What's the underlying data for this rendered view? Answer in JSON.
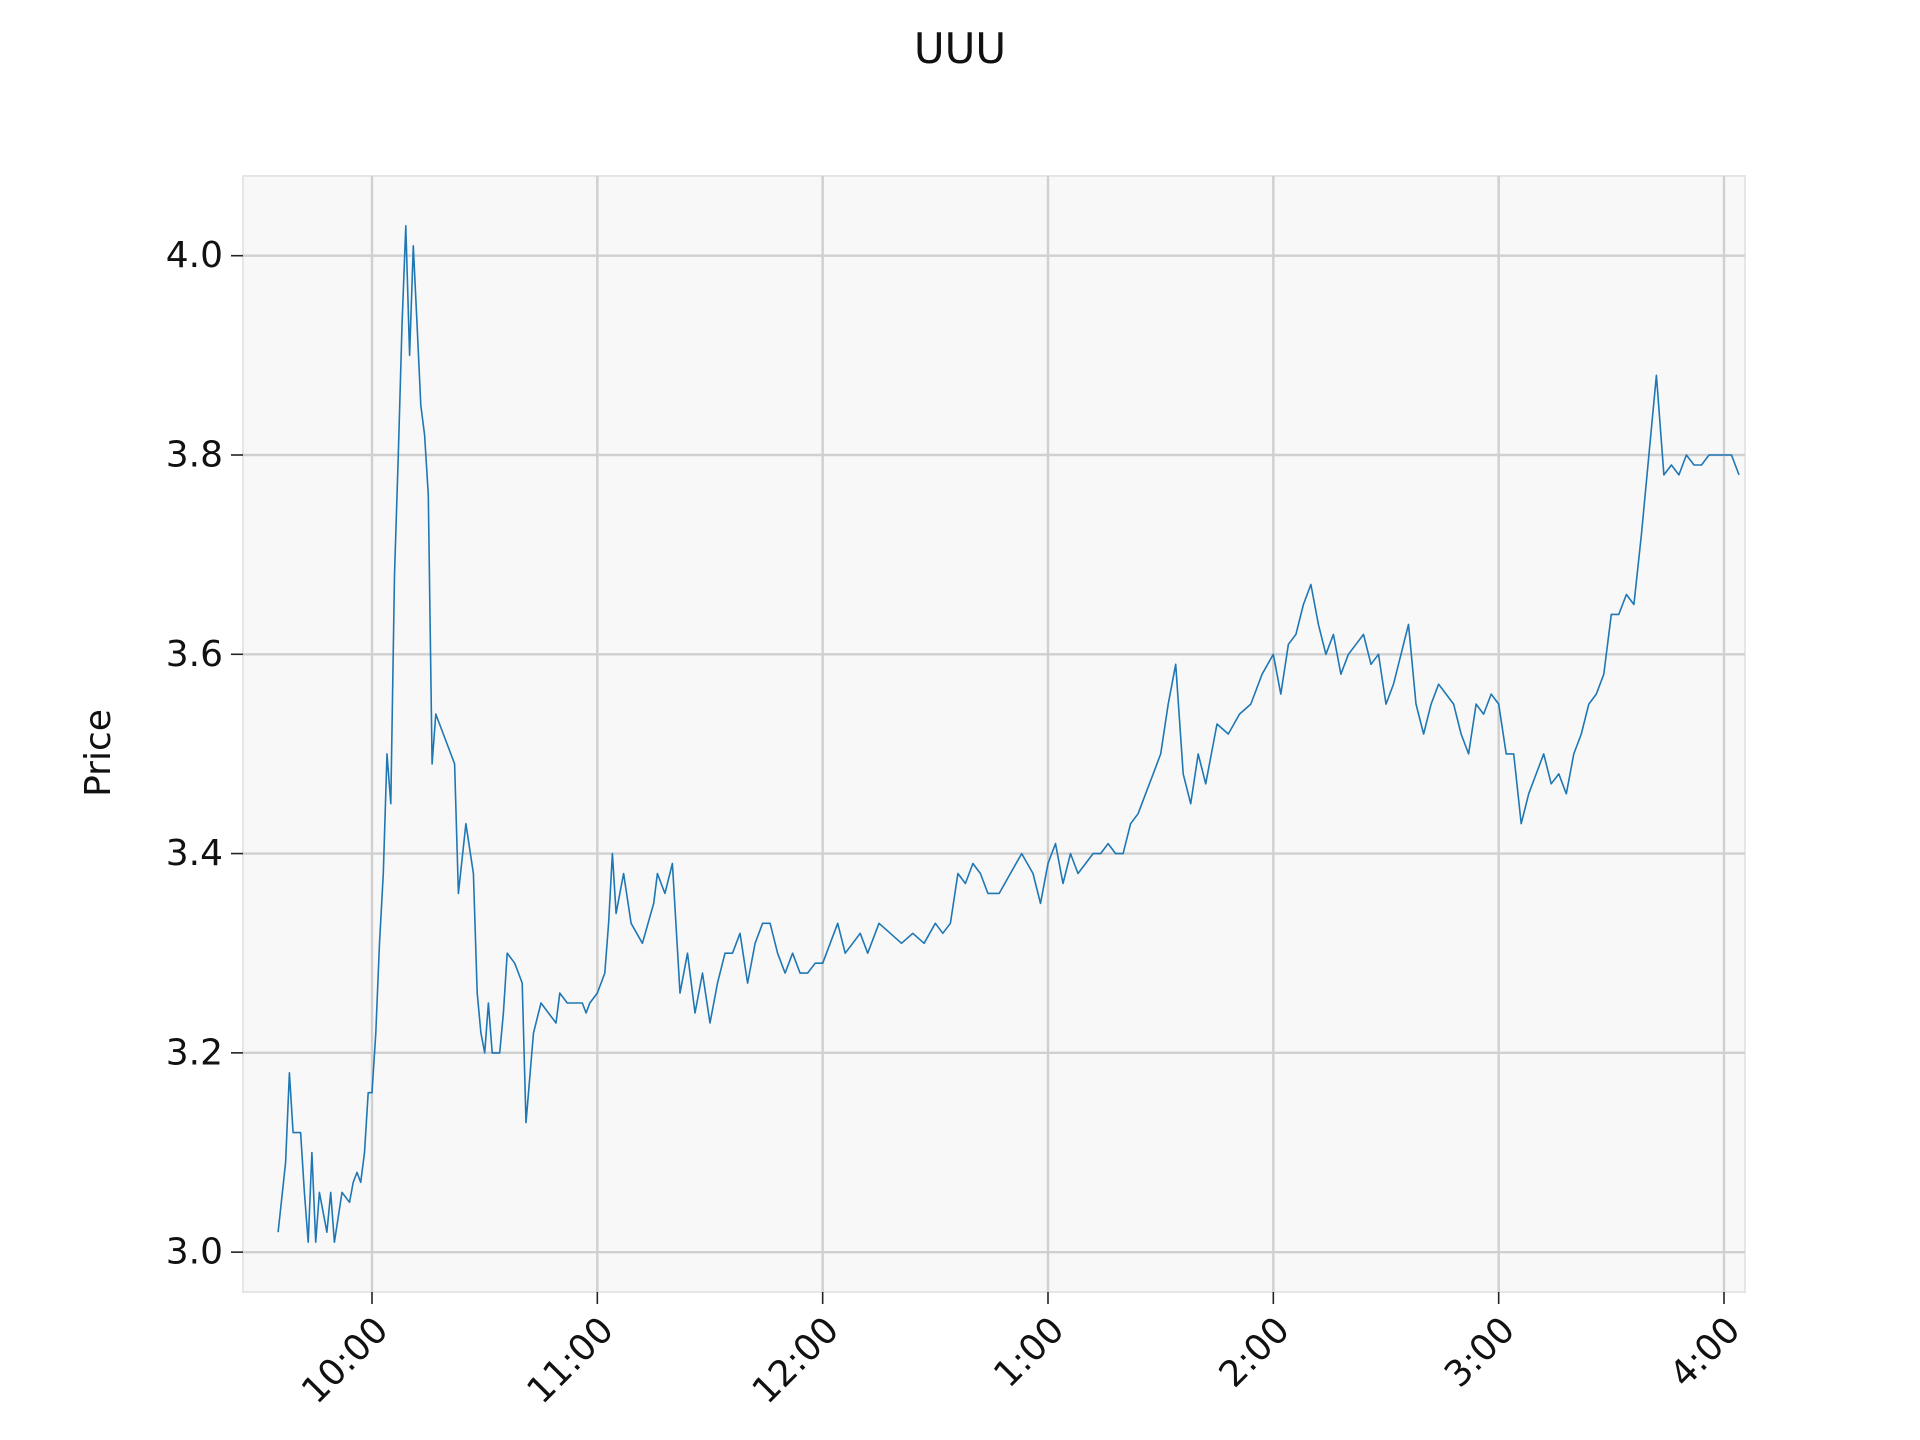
{
  "chart_data": {
    "type": "line",
    "title": "UUU",
    "xlabel": "",
    "ylabel": "Price",
    "x_ticks": [
      "10:00",
      "11:00",
      "12:00",
      "1:00",
      "2:00",
      "3:00",
      "4:00"
    ],
    "y_ticks": [
      "3.0",
      "3.2",
      "3.4",
      "3.6",
      "3.8",
      "4.0"
    ],
    "ylim": [
      2.96,
      4.08
    ],
    "grid": true,
    "series": [
      {
        "color": "#1f77b4",
        "points": [
          [
            "9:35",
            3.02
          ],
          [
            "9:37",
            3.09
          ],
          [
            "9:38",
            3.18
          ],
          [
            "9:39",
            3.12
          ],
          [
            "9:41",
            3.12
          ],
          [
            "9:42",
            3.06
          ],
          [
            "9:43",
            3.01
          ],
          [
            "9:44",
            3.1
          ],
          [
            "9:45",
            3.01
          ],
          [
            "9:46",
            3.06
          ],
          [
            "9:48",
            3.02
          ],
          [
            "9:49",
            3.06
          ],
          [
            "9:50",
            3.01
          ],
          [
            "9:52",
            3.06
          ],
          [
            "9:54",
            3.05
          ],
          [
            "9:55",
            3.07
          ],
          [
            "9:56",
            3.08
          ],
          [
            "9:57",
            3.07
          ],
          [
            "9:58",
            3.1
          ],
          [
            "9:59",
            3.16
          ],
          [
            "10:00",
            3.16
          ],
          [
            "10:01",
            3.22
          ],
          [
            "10:02",
            3.31
          ],
          [
            "10:03",
            3.38
          ],
          [
            "10:04",
            3.5
          ],
          [
            "10:05",
            3.45
          ],
          [
            "10:06",
            3.68
          ],
          [
            "10:07",
            3.8
          ],
          [
            "10:08",
            3.93
          ],
          [
            "10:09",
            4.03
          ],
          [
            "10:10",
            3.9
          ],
          [
            "10:11",
            4.01
          ],
          [
            "10:12",
            3.93
          ],
          [
            "10:13",
            3.85
          ],
          [
            "10:14",
            3.82
          ],
          [
            "10:15",
            3.76
          ],
          [
            "10:16",
            3.49
          ],
          [
            "10:17",
            3.54
          ],
          [
            "10:20",
            3.51
          ],
          [
            "10:22",
            3.49
          ],
          [
            "10:23",
            3.36
          ],
          [
            "10:25",
            3.43
          ],
          [
            "10:27",
            3.38
          ],
          [
            "10:28",
            3.26
          ],
          [
            "10:29",
            3.22
          ],
          [
            "10:30",
            3.2
          ],
          [
            "10:31",
            3.25
          ],
          [
            "10:32",
            3.2
          ],
          [
            "10:33",
            3.2
          ],
          [
            "10:34",
            3.2
          ],
          [
            "10:35",
            3.24
          ],
          [
            "10:36",
            3.3
          ],
          [
            "10:38",
            3.29
          ],
          [
            "10:39",
            3.28
          ],
          [
            "10:40",
            3.27
          ],
          [
            "10:41",
            3.13
          ],
          [
            "10:43",
            3.22
          ],
          [
            "10:45",
            3.25
          ],
          [
            "10:47",
            3.24
          ],
          [
            "10:49",
            3.23
          ],
          [
            "10:50",
            3.26
          ],
          [
            "10:52",
            3.25
          ],
          [
            "10:54",
            3.25
          ],
          [
            "10:56",
            3.25
          ],
          [
            "10:57",
            3.24
          ],
          [
            "10:58",
            3.25
          ],
          [
            "11:00",
            3.26
          ],
          [
            "11:02",
            3.28
          ],
          [
            "11:03",
            3.33
          ],
          [
            "11:04",
            3.4
          ],
          [
            "11:05",
            3.34
          ],
          [
            "11:07",
            3.38
          ],
          [
            "11:09",
            3.33
          ],
          [
            "11:12",
            3.31
          ],
          [
            "11:15",
            3.35
          ],
          [
            "11:16",
            3.38
          ],
          [
            "11:18",
            3.36
          ],
          [
            "11:20",
            3.39
          ],
          [
            "11:22",
            3.26
          ],
          [
            "11:24",
            3.3
          ],
          [
            "11:26",
            3.24
          ],
          [
            "11:28",
            3.28
          ],
          [
            "11:30",
            3.23
          ],
          [
            "11:32",
            3.27
          ],
          [
            "11:34",
            3.3
          ],
          [
            "11:36",
            3.3
          ],
          [
            "11:38",
            3.32
          ],
          [
            "11:40",
            3.27
          ],
          [
            "11:42",
            3.31
          ],
          [
            "11:44",
            3.33
          ],
          [
            "11:46",
            3.33
          ],
          [
            "11:48",
            3.3
          ],
          [
            "11:50",
            3.28
          ],
          [
            "11:52",
            3.3
          ],
          [
            "11:54",
            3.28
          ],
          [
            "11:56",
            3.28
          ],
          [
            "11:58",
            3.29
          ],
          [
            "12:00",
            3.29
          ],
          [
            "12:02",
            3.31
          ],
          [
            "12:04",
            3.33
          ],
          [
            "12:06",
            3.3
          ],
          [
            "12:08",
            3.31
          ],
          [
            "12:10",
            3.32
          ],
          [
            "12:12",
            3.3
          ],
          [
            "12:15",
            3.33
          ],
          [
            "12:18",
            3.32
          ],
          [
            "12:21",
            3.31
          ],
          [
            "12:24",
            3.32
          ],
          [
            "12:27",
            3.31
          ],
          [
            "12:30",
            3.33
          ],
          [
            "12:32",
            3.32
          ],
          [
            "12:34",
            3.33
          ],
          [
            "12:36",
            3.38
          ],
          [
            "12:38",
            3.37
          ],
          [
            "12:40",
            3.39
          ],
          [
            "12:42",
            3.38
          ],
          [
            "12:44",
            3.36
          ],
          [
            "12:47",
            3.36
          ],
          [
            "12:50",
            3.38
          ],
          [
            "12:53",
            3.4
          ],
          [
            "12:56",
            3.38
          ],
          [
            "12:58",
            3.35
          ],
          [
            "1:00",
            3.39
          ],
          [
            "1:02",
            3.41
          ],
          [
            "1:04",
            3.37
          ],
          [
            "1:06",
            3.4
          ],
          [
            "1:08",
            3.38
          ],
          [
            "1:10",
            3.39
          ],
          [
            "1:12",
            3.4
          ],
          [
            "1:14",
            3.4
          ],
          [
            "1:16",
            3.41
          ],
          [
            "1:18",
            3.4
          ],
          [
            "1:20",
            3.4
          ],
          [
            "1:22",
            3.43
          ],
          [
            "1:24",
            3.44
          ],
          [
            "1:26",
            3.46
          ],
          [
            "1:28",
            3.48
          ],
          [
            "1:30",
            3.5
          ],
          [
            "1:32",
            3.55
          ],
          [
            "1:34",
            3.59
          ],
          [
            "1:36",
            3.48
          ],
          [
            "1:38",
            3.45
          ],
          [
            "1:40",
            3.5
          ],
          [
            "1:42",
            3.47
          ],
          [
            "1:45",
            3.53
          ],
          [
            "1:48",
            3.52
          ],
          [
            "1:51",
            3.54
          ],
          [
            "1:54",
            3.55
          ],
          [
            "1:57",
            3.58
          ],
          [
            "2:00",
            3.6
          ],
          [
            "2:02",
            3.56
          ],
          [
            "2:04",
            3.61
          ],
          [
            "2:06",
            3.62
          ],
          [
            "2:08",
            3.65
          ],
          [
            "2:10",
            3.67
          ],
          [
            "2:12",
            3.63
          ],
          [
            "2:14",
            3.6
          ],
          [
            "2:16",
            3.62
          ],
          [
            "2:18",
            3.58
          ],
          [
            "2:20",
            3.6
          ],
          [
            "2:22",
            3.61
          ],
          [
            "2:24",
            3.62
          ],
          [
            "2:26",
            3.59
          ],
          [
            "2:28",
            3.6
          ],
          [
            "2:30",
            3.55
          ],
          [
            "2:32",
            3.57
          ],
          [
            "2:34",
            3.6
          ],
          [
            "2:36",
            3.63
          ],
          [
            "2:38",
            3.55
          ],
          [
            "2:40",
            3.52
          ],
          [
            "2:42",
            3.55
          ],
          [
            "2:44",
            3.57
          ],
          [
            "2:46",
            3.56
          ],
          [
            "2:48",
            3.55
          ],
          [
            "2:50",
            3.52
          ],
          [
            "2:52",
            3.5
          ],
          [
            "2:54",
            3.55
          ],
          [
            "2:56",
            3.54
          ],
          [
            "2:58",
            3.56
          ],
          [
            "3:00",
            3.55
          ],
          [
            "3:02",
            3.5
          ],
          [
            "3:04",
            3.5
          ],
          [
            "3:06",
            3.43
          ],
          [
            "3:08",
            3.46
          ],
          [
            "3:10",
            3.48
          ],
          [
            "3:12",
            3.5
          ],
          [
            "3:14",
            3.47
          ],
          [
            "3:16",
            3.48
          ],
          [
            "3:18",
            3.46
          ],
          [
            "3:20",
            3.5
          ],
          [
            "3:22",
            3.52
          ],
          [
            "3:24",
            3.55
          ],
          [
            "3:26",
            3.56
          ],
          [
            "3:28",
            3.58
          ],
          [
            "3:30",
            3.64
          ],
          [
            "3:32",
            3.64
          ],
          [
            "3:34",
            3.66
          ],
          [
            "3:36",
            3.65
          ],
          [
            "3:38",
            3.72
          ],
          [
            "3:40",
            3.8
          ],
          [
            "3:42",
            3.88
          ],
          [
            "3:44",
            3.78
          ],
          [
            "3:46",
            3.79
          ],
          [
            "3:48",
            3.78
          ],
          [
            "3:50",
            3.8
          ],
          [
            "3:52",
            3.79
          ],
          [
            "3:54",
            3.79
          ],
          [
            "3:56",
            3.8
          ],
          [
            "3:58",
            3.8
          ],
          [
            "4:00",
            3.8
          ],
          [
            "4:02",
            3.8
          ],
          [
            "4:04",
            3.78
          ]
        ]
      }
    ]
  }
}
